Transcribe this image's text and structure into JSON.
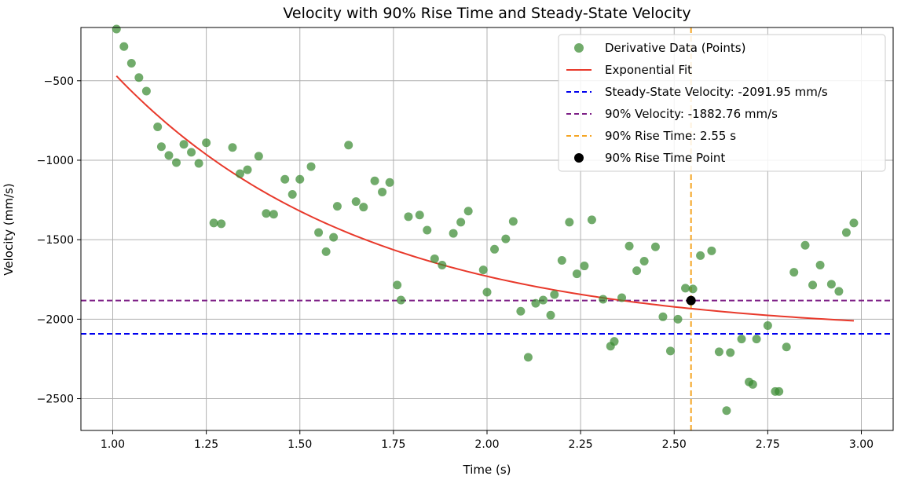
{
  "chart_data": {
    "type": "scatter",
    "title": "Velocity with 90% Rise Time and Steady-State Velocity",
    "xlabel": "Time (s)",
    "ylabel": "Velocity (mm/s)",
    "xlim": [
      0.915,
      3.085
    ],
    "ylim": [
      -2700,
      -165
    ],
    "x_ticks": [
      1.0,
      1.25,
      1.5,
      1.75,
      2.0,
      2.25,
      2.5,
      2.75,
      3.0
    ],
    "x_tick_labels": [
      "1.00",
      "1.25",
      "1.50",
      "1.75",
      "2.00",
      "2.25",
      "2.50",
      "2.75",
      "3.00"
    ],
    "y_ticks": [
      -500,
      -1000,
      -1500,
      -2000,
      -2500
    ],
    "y_tick_labels": [
      "−500",
      "−1000",
      "−1500",
      "−2000",
      "−2500"
    ],
    "grid": true,
    "legend_position": "top-right",
    "colors": {
      "points": "#3a8a32",
      "fit": "#e8392b",
      "steady": "#0000ee",
      "ninety": "#7d1f86",
      "rise": "#f5a524",
      "rise_point": "#000000",
      "grid": "#b0b0b0"
    },
    "legend": [
      {
        "kind": "point",
        "color_key": "points",
        "label": "Derivative Data (Points)"
      },
      {
        "kind": "line",
        "color_key": "fit",
        "label": "Exponential Fit"
      },
      {
        "kind": "dash",
        "color_key": "steady",
        "label": "Steady-State Velocity: -2091.95 mm/s"
      },
      {
        "kind": "dash",
        "color_key": "ninety",
        "label": "90% Velocity: -1882.76 mm/s"
      },
      {
        "kind": "dash",
        "color_key": "rise",
        "label": "90% Rise Time: 2.55 s"
      },
      {
        "kind": "point",
        "color_key": "rise_point",
        "label": "90% Rise Time Point"
      }
    ],
    "steady_state_velocity": -2091.95,
    "ninety_percent_velocity": -1882.76,
    "rise_time": 2.545,
    "fit": {
      "v0": -470,
      "v_inf": -2091.95,
      "t0": 1.01,
      "tau": 0.66,
      "t_start": 1.01,
      "t_end": 2.98
    },
    "points": [
      [
        1.01,
        -175
      ],
      [
        1.03,
        -285
      ],
      [
        1.05,
        -390
      ],
      [
        1.07,
        -480
      ],
      [
        1.09,
        -565
      ],
      [
        1.12,
        -790
      ],
      [
        1.13,
        -915
      ],
      [
        1.15,
        -970
      ],
      [
        1.17,
        -1015
      ],
      [
        1.19,
        -900
      ],
      [
        1.21,
        -950
      ],
      [
        1.23,
        -1020
      ],
      [
        1.25,
        -890
      ],
      [
        1.27,
        -1395
      ],
      [
        1.29,
        -1400
      ],
      [
        1.32,
        -920
      ],
      [
        1.34,
        -1085
      ],
      [
        1.36,
        -1060
      ],
      [
        1.39,
        -975
      ],
      [
        1.41,
        -1335
      ],
      [
        1.43,
        -1340
      ],
      [
        1.46,
        -1120
      ],
      [
        1.48,
        -1215
      ],
      [
        1.5,
        -1120
      ],
      [
        1.53,
        -1040
      ],
      [
        1.55,
        -1455
      ],
      [
        1.57,
        -1575
      ],
      [
        1.59,
        -1485
      ],
      [
        1.6,
        -1290
      ],
      [
        1.63,
        -905
      ],
      [
        1.65,
        -1260
      ],
      [
        1.67,
        -1295
      ],
      [
        1.7,
        -1130
      ],
      [
        1.72,
        -1200
      ],
      [
        1.74,
        -1140
      ],
      [
        1.76,
        -1785
      ],
      [
        1.77,
        -1880
      ],
      [
        1.79,
        -1355
      ],
      [
        1.82,
        -1345
      ],
      [
        1.84,
        -1440
      ],
      [
        1.86,
        -1620
      ],
      [
        1.88,
        -1660
      ],
      [
        1.91,
        -1460
      ],
      [
        1.93,
        -1390
      ],
      [
        1.95,
        -1320
      ],
      [
        1.99,
        -1690
      ],
      [
        2.0,
        -1830
      ],
      [
        2.02,
        -1560
      ],
      [
        2.05,
        -1495
      ],
      [
        2.07,
        -1385
      ],
      [
        2.09,
        -1950
      ],
      [
        2.11,
        -2240
      ],
      [
        2.13,
        -1900
      ],
      [
        2.15,
        -1880
      ],
      [
        2.17,
        -1975
      ],
      [
        2.18,
        -1845
      ],
      [
        2.2,
        -1630
      ],
      [
        2.22,
        -1390
      ],
      [
        2.24,
        -1715
      ],
      [
        2.26,
        -1665
      ],
      [
        2.28,
        -1375
      ],
      [
        2.31,
        -1875
      ],
      [
        2.33,
        -2170
      ],
      [
        2.34,
        -2140
      ],
      [
        2.36,
        -1865
      ],
      [
        2.38,
        -1540
      ],
      [
        2.4,
        -1695
      ],
      [
        2.42,
        -1635
      ],
      [
        2.45,
        -1545
      ],
      [
        2.47,
        -1985
      ],
      [
        2.49,
        -2200
      ],
      [
        2.51,
        -2000
      ],
      [
        2.53,
        -1805
      ],
      [
        2.55,
        -1810
      ],
      [
        2.57,
        -1600
      ],
      [
        2.6,
        -1570
      ],
      [
        2.62,
        -2205
      ],
      [
        2.64,
        -2575
      ],
      [
        2.65,
        -2210
      ],
      [
        2.68,
        -2125
      ],
      [
        2.7,
        -2395
      ],
      [
        2.71,
        -2410
      ],
      [
        2.72,
        -2125
      ],
      [
        2.75,
        -2040
      ],
      [
        2.77,
        -2455
      ],
      [
        2.78,
        -2455
      ],
      [
        2.8,
        -2175
      ],
      [
        2.82,
        -1705
      ],
      [
        2.85,
        -1535
      ],
      [
        2.87,
        -1785
      ],
      [
        2.89,
        -1660
      ],
      [
        2.92,
        -1780
      ],
      [
        2.94,
        -1825
      ],
      [
        2.96,
        -1455
      ],
      [
        2.98,
        -1395
      ]
    ],
    "rise_point": [
      2.545,
      -1882.76
    ]
  }
}
